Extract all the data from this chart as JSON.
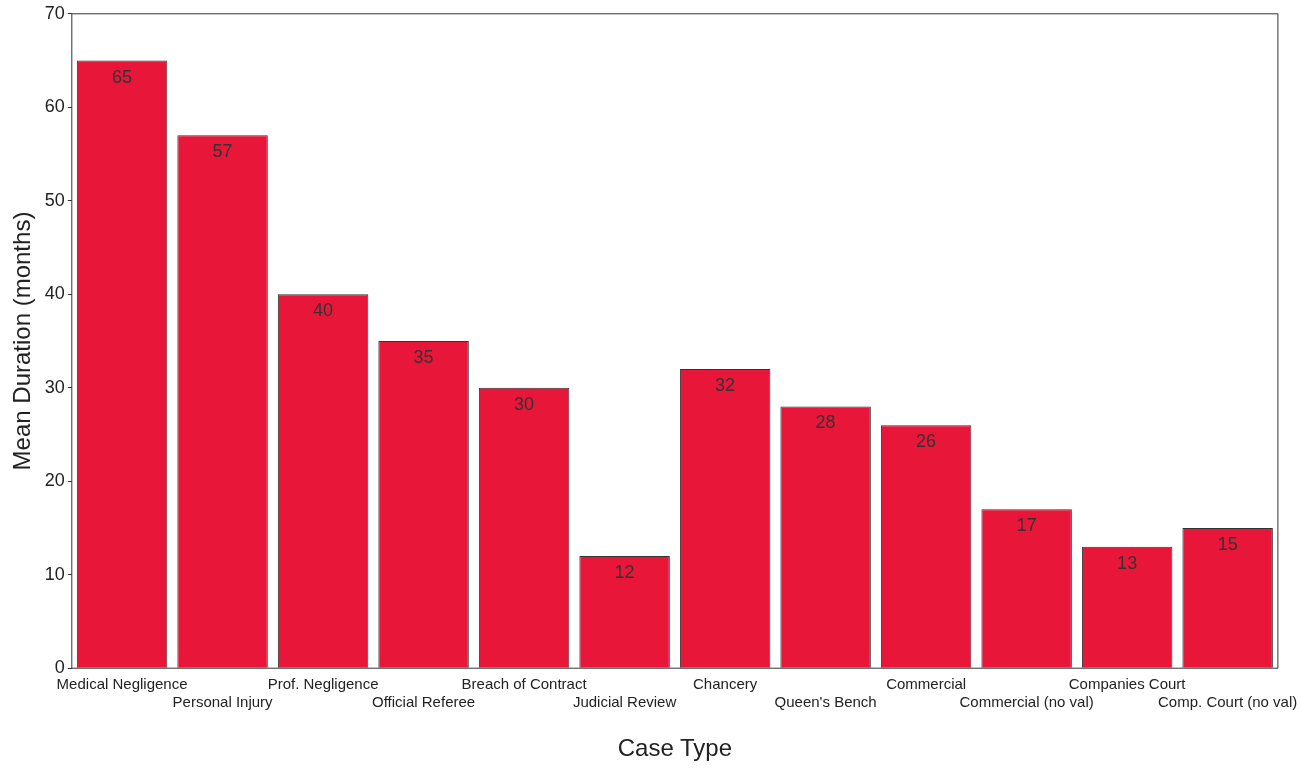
{
  "chart_data": {
    "type": "bar",
    "xlabel": "Case Type",
    "ylabel": "Mean Duration (months)",
    "categories": [
      "Medical Negligence",
      "Personal Injury",
      "Prof. Negligence",
      "Official Referee",
      "Breach of Contract",
      "Judicial Review",
      "Chancery",
      "Queen's Bench",
      "Commercial",
      "Commercial (no val)",
      "Companies Court",
      "Comp. Court (no val)"
    ],
    "values": [
      65,
      57,
      40,
      35,
      30,
      12,
      32,
      28,
      26,
      17,
      13,
      15
    ],
    "color": "#e8173a",
    "ylim": [
      0,
      70
    ],
    "yticks": [
      0,
      10,
      20,
      30,
      40,
      50,
      60,
      70
    ],
    "grid": false,
    "data_labels": true
  }
}
